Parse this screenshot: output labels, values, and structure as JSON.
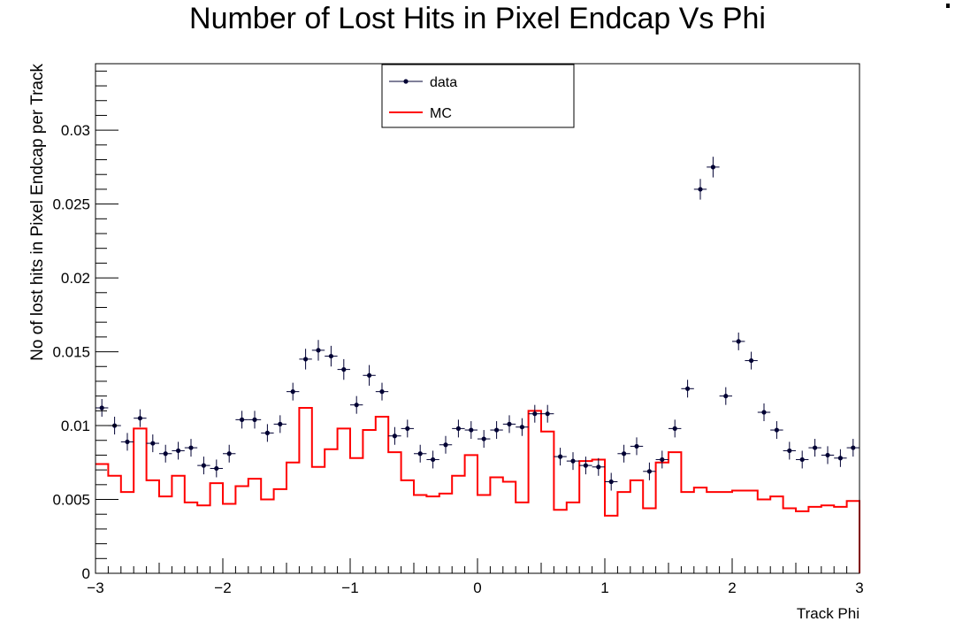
{
  "chart_data": {
    "type": "histogram",
    "title": "Number of Lost Hits in Pixel Endcap Vs Phi",
    "xlabel": "Track Phi",
    "ylabel": "No of lost hits in Pixel Endcap per Track",
    "xlim": [
      -3,
      3
    ],
    "ylim": [
      0,
      0.0345
    ],
    "x_ticks": [
      -3,
      -2,
      -1,
      0,
      1,
      2,
      3
    ],
    "x_tick_labels": [
      "−3",
      "−2",
      "−1",
      "0",
      "1",
      "2",
      "3"
    ],
    "y_ticks": [
      0,
      0.005,
      0.01,
      0.015,
      0.02,
      0.025,
      0.03
    ],
    "y_tick_labels": [
      "0",
      "0.005",
      "0.01",
      "0.015",
      "0.02",
      "0.025",
      "0.03"
    ],
    "grid": false,
    "legend_position": "top-center",
    "bin_edges_start": -3,
    "bin_width": 0.1,
    "series": [
      {
        "name": "data",
        "style": "markers-with-error-bars",
        "color": "#000033",
        "values": [
          0.0112,
          0.01,
          0.0089,
          0.0105,
          0.0088,
          0.0081,
          0.0083,
          0.0085,
          0.0073,
          0.0071,
          0.0081,
          0.0104,
          0.0104,
          0.0095,
          0.0101,
          0.0123,
          0.0145,
          0.0151,
          0.0147,
          0.0138,
          0.0114,
          0.0134,
          0.0123,
          0.0093,
          0.0098,
          0.0081,
          0.0077,
          0.0087,
          0.0098,
          0.0097,
          0.0091,
          0.0097,
          0.0101,
          0.0099,
          0.0108,
          0.0108,
          0.0079,
          0.0076,
          0.0073,
          0.0072,
          0.0062,
          0.0081,
          0.0086,
          0.0069,
          0.0077,
          0.0098,
          0.0125,
          0.026,
          0.0275,
          0.012,
          0.0157,
          0.0144,
          0.0109,
          0.0097,
          0.0083,
          0.0077,
          0.0085,
          0.008,
          0.0078,
          0.0085
        ],
        "errors": [
          0.0006,
          0.0006,
          0.0006,
          0.0006,
          0.0006,
          0.0006,
          0.0006,
          0.0006,
          0.0006,
          0.0006,
          0.0006,
          0.0006,
          0.0006,
          0.0006,
          0.0006,
          0.0006,
          0.0007,
          0.0007,
          0.0007,
          0.0007,
          0.0006,
          0.0007,
          0.0006,
          0.0006,
          0.0006,
          0.0006,
          0.0006,
          0.0006,
          0.0006,
          0.0006,
          0.0006,
          0.0006,
          0.0006,
          0.0006,
          0.0006,
          0.0006,
          0.0006,
          0.0006,
          0.0006,
          0.0006,
          0.0006,
          0.0006,
          0.0006,
          0.0006,
          0.0006,
          0.0006,
          0.0006,
          0.0007,
          0.0007,
          0.0006,
          0.0006,
          0.0006,
          0.0006,
          0.0006,
          0.0006,
          0.0006,
          0.0006,
          0.0006,
          0.0006,
          0.0006
        ]
      },
      {
        "name": "MC",
        "style": "step",
        "color": "#ff0000",
        "values": [
          0.0074,
          0.0066,
          0.0055,
          0.0098,
          0.0063,
          0.0052,
          0.0066,
          0.0048,
          0.0046,
          0.0061,
          0.0047,
          0.0059,
          0.0064,
          0.005,
          0.0057,
          0.0075,
          0.0112,
          0.0072,
          0.0084,
          0.0098,
          0.0078,
          0.0097,
          0.0106,
          0.0082,
          0.0063,
          0.0053,
          0.0052,
          0.0054,
          0.0066,
          0.008,
          0.0053,
          0.0065,
          0.0062,
          0.0048,
          0.011,
          0.0096,
          0.0043,
          0.0048,
          0.0076,
          0.0077,
          0.0039,
          0.0055,
          0.0063,
          0.0044,
          0.0075,
          0.0082,
          0.0055,
          0.0058,
          0.0055,
          0.0055,
          0.0056,
          0.0056,
          0.005,
          0.0052,
          0.0044,
          0.0042,
          0.0045,
          0.0046,
          0.0045,
          0.0049
        ]
      }
    ]
  }
}
